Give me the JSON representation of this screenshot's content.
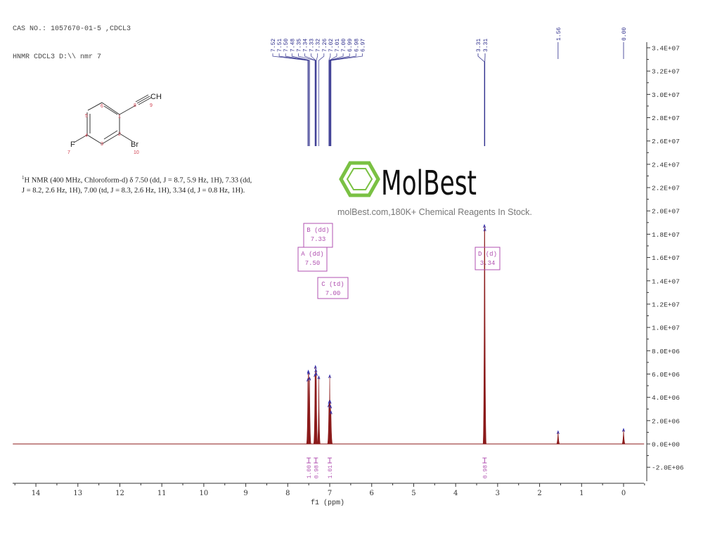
{
  "header": {
    "cas_line": "CAS NO.: 1057670-01-5 ,CDCL3",
    "file_line": "HNMR CDCL3 D:\\\\ nmr 7"
  },
  "molecule": {
    "atoms": {
      "F": "F",
      "Br": "Br",
      "CH": "CH"
    },
    "atom_numbers": [
      "1",
      "2",
      "3",
      "4",
      "5",
      "6",
      "7",
      "8",
      "9",
      "10"
    ]
  },
  "description": {
    "sup": "1",
    "text": "H NMR (400 MHz, Chloroform-d) δ 7.50 (dd, J = 8.7, 5.9 Hz, 1H), 7.33 (dd, J = 8.2, 2.6 Hz, 1H), 7.00 (td, J = 8.3, 2.6 Hz, 1H), 3.34 (d, J = 0.8 Hz, 1H)."
  },
  "watermark": {
    "logo": "MolBest",
    "tagline": "molBest.com,180K+ Chemical Reagents In Stock.",
    "color": "#7ac143"
  },
  "colors": {
    "spectrum": "#8b1a1a",
    "peak_labels": "#2a2a8a",
    "integrals": "#b050b0",
    "axis": "#333333"
  },
  "chart_data": {
    "type": "line",
    "title": "",
    "xlabel": "f1 (ppm)",
    "ylabel": "",
    "xlim": [
      14.55,
      -0.49
    ],
    "ylim": [
      -3000000,
      35000000
    ],
    "x_ticks": [
      "14",
      "13",
      "12",
      "11",
      "10",
      "9",
      "8",
      "7",
      "6",
      "5",
      "4",
      "3",
      "2",
      "1",
      "0"
    ],
    "y_ticks": [
      "3.4E+07",
      "3.2E+07",
      "3.0E+07",
      "2.8E+07",
      "2.6E+07",
      "2.4E+07",
      "2.2E+07",
      "2.0E+07",
      "1.8E+07",
      "1.6E+07",
      "1.4E+07",
      "1.2E+07",
      "1.0E+07",
      "8.0E+06",
      "6.0E+06",
      "4.0E+06",
      "2.0E+06",
      "0.0E+00",
      "-2.0E+06"
    ],
    "y_tick_values": [
      34000000,
      32000000,
      30000000,
      28000000,
      26000000,
      24000000,
      22000000,
      20000000,
      18000000,
      16000000,
      14000000,
      12000000,
      10000000,
      8000000,
      6000000,
      4000000,
      2000000,
      0,
      -2000000
    ],
    "peaks": [
      {
        "ppm": 7.52,
        "label": "7.52",
        "height": 5600000
      },
      {
        "ppm": 7.51,
        "label": "7.51",
        "height": 6300000
      },
      {
        "ppm": 7.5,
        "label": "7.50",
        "height": 6200000
      },
      {
        "ppm": 7.48,
        "label": "7.48",
        "height": 5700000
      },
      {
        "ppm": 7.35,
        "label": "7.35",
        "height": 6000000
      },
      {
        "ppm": 7.34,
        "label": "7.34",
        "height": 6700000
      },
      {
        "ppm": 7.33,
        "label": "7.33",
        "height": 6400000
      },
      {
        "ppm": 7.32,
        "label": "7.32",
        "height": 6100000
      },
      {
        "ppm": 7.26,
        "label": "7.26",
        "height": 5800000
      },
      {
        "ppm": 7.02,
        "label": "7.02",
        "height": 3400000
      },
      {
        "ppm": 7.01,
        "label": "7.01",
        "height": 3700000
      },
      {
        "ppm": 7.0,
        "label": "7.00",
        "height": 5900000
      },
      {
        "ppm": 6.99,
        "label": "6.99",
        "height": 3700000
      },
      {
        "ppm": 6.98,
        "label": "6.98",
        "height": 3300000
      },
      {
        "ppm": 6.97,
        "label": "6.97",
        "height": 2800000
      },
      {
        "ppm": 3.315,
        "label": "3.31",
        "height": 18800000
      },
      {
        "ppm": 3.305,
        "label": "3.31",
        "height": 18500000
      },
      {
        "ppm": 1.56,
        "label": "1.56",
        "height": 1100000
      },
      {
        "ppm": 0.0,
        "label": "0.00",
        "height": 1300000
      }
    ],
    "multiplets": [
      {
        "id": "A",
        "type": "dd",
        "shift": "7.50",
        "label": "A (dd)"
      },
      {
        "id": "B",
        "type": "dd",
        "shift": "7.33",
        "label": "B (dd)"
      },
      {
        "id": "C",
        "type": "td",
        "shift": "7.00",
        "label": "C (td)"
      },
      {
        "id": "D",
        "type": "d",
        "shift": "3.34",
        "label": "D (d)"
      }
    ],
    "integrals": [
      {
        "ppm": 7.5,
        "value": "1.00"
      },
      {
        "ppm": 7.33,
        "value": "0.98"
      },
      {
        "ppm": 7.0,
        "value": "1.01"
      },
      {
        "ppm": 3.31,
        "value": "0.98"
      }
    ]
  }
}
